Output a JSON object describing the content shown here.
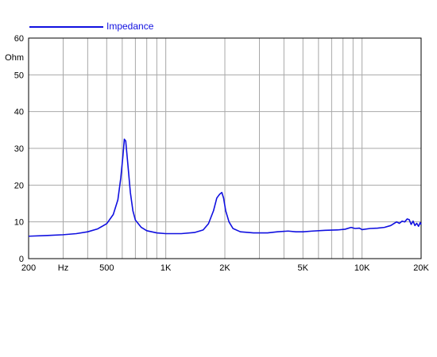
{
  "chart_data": {
    "type": "line",
    "x_scale": "log",
    "xlim": [
      200,
      20000
    ],
    "ylim": [
      0,
      60
    ],
    "y_ticks": [
      0,
      10,
      20,
      30,
      40,
      50,
      60
    ],
    "y_unit_label": "Ohm",
    "x_tick_labels": [
      {
        "value": 200,
        "label": "200"
      },
      {
        "value": 300,
        "label": "Hz"
      },
      {
        "value": 500,
        "label": "500"
      },
      {
        "value": 1000,
        "label": "1K"
      },
      {
        "value": 2000,
        "label": "2K"
      },
      {
        "value": 5000,
        "label": "5K"
      },
      {
        "value": 10000,
        "label": "10K"
      },
      {
        "value": 20000,
        "label": "20K"
      }
    ],
    "x_gridlines": [
      300,
      400,
      500,
      600,
      700,
      800,
      900,
      1000,
      2000,
      3000,
      4000,
      5000,
      6000,
      7000,
      8000,
      9000,
      10000
    ],
    "grid": true,
    "legend_position": "top-left",
    "series": [
      {
        "name": "Impedance",
        "color": "#1010e0",
        "points": [
          [
            200,
            6.1
          ],
          [
            250,
            6.3
          ],
          [
            300,
            6.5
          ],
          [
            350,
            6.8
          ],
          [
            400,
            7.3
          ],
          [
            450,
            8.1
          ],
          [
            500,
            9.5
          ],
          [
            540,
            12.0
          ],
          [
            570,
            16.0
          ],
          [
            590,
            22.0
          ],
          [
            605,
            28.0
          ],
          [
            615,
            32.5
          ],
          [
            625,
            32.0
          ],
          [
            640,
            26.0
          ],
          [
            660,
            18.0
          ],
          [
            680,
            13.0
          ],
          [
            700,
            10.5
          ],
          [
            750,
            8.5
          ],
          [
            800,
            7.6
          ],
          [
            900,
            7.0
          ],
          [
            1000,
            6.8
          ],
          [
            1200,
            6.8
          ],
          [
            1400,
            7.1
          ],
          [
            1550,
            7.8
          ],
          [
            1650,
            9.5
          ],
          [
            1750,
            13.0
          ],
          [
            1820,
            16.5
          ],
          [
            1880,
            17.5
          ],
          [
            1930,
            18.0
          ],
          [
            1970,
            16.5
          ],
          [
            2020,
            13.0
          ],
          [
            2100,
            10.0
          ],
          [
            2200,
            8.2
          ],
          [
            2400,
            7.3
          ],
          [
            2800,
            7.0
          ],
          [
            3300,
            7.0
          ],
          [
            3700,
            7.3
          ],
          [
            4200,
            7.5
          ],
          [
            4600,
            7.3
          ],
          [
            5000,
            7.3
          ],
          [
            5600,
            7.5
          ],
          [
            6500,
            7.7
          ],
          [
            7500,
            7.8
          ],
          [
            8200,
            8.0
          ],
          [
            8800,
            8.5
          ],
          [
            9200,
            8.2
          ],
          [
            9700,
            8.3
          ],
          [
            10000,
            7.9
          ],
          [
            11000,
            8.2
          ],
          [
            12000,
            8.3
          ],
          [
            13000,
            8.5
          ],
          [
            14000,
            9.0
          ],
          [
            15000,
            10.0
          ],
          [
            15500,
            9.6
          ],
          [
            16000,
            10.2
          ],
          [
            16500,
            10.0
          ],
          [
            17000,
            10.8
          ],
          [
            17400,
            10.6
          ],
          [
            17800,
            9.3
          ],
          [
            18200,
            10.2
          ],
          [
            18600,
            9.0
          ],
          [
            19000,
            9.6
          ],
          [
            19400,
            8.8
          ],
          [
            19800,
            9.8
          ],
          [
            20000,
            9.3
          ]
        ]
      }
    ]
  }
}
